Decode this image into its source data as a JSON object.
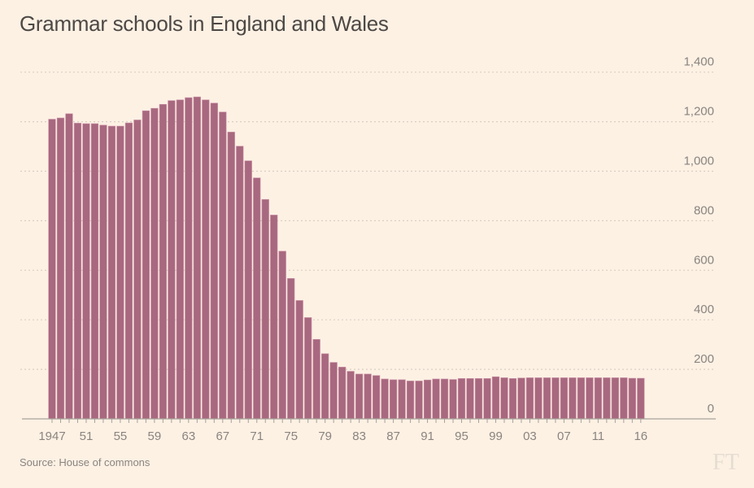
{
  "chart_data": {
    "type": "bar",
    "title": "Grammar schools in England and Wales",
    "source": "Source: House of commons",
    "logo": "FT",
    "xlabel": "",
    "ylabel": "",
    "ylim": [
      0,
      1400
    ],
    "yticks": [
      0,
      200,
      400,
      600,
      800,
      1000,
      1200,
      1400
    ],
    "ytick_labels": [
      "0",
      "200",
      "400",
      "600",
      "800",
      "1,000",
      "1,200",
      "1,400"
    ],
    "grid": true,
    "y_axis_side": "right",
    "xtick_labels": [
      {
        "year": 1947,
        "label": "1947"
      },
      {
        "year": 1951,
        "label": "51"
      },
      {
        "year": 1955,
        "label": "55"
      },
      {
        "year": 1959,
        "label": "59"
      },
      {
        "year": 1963,
        "label": "63"
      },
      {
        "year": 1967,
        "label": "67"
      },
      {
        "year": 1971,
        "label": "71"
      },
      {
        "year": 1975,
        "label": "75"
      },
      {
        "year": 1979,
        "label": "79"
      },
      {
        "year": 1983,
        "label": "83"
      },
      {
        "year": 1987,
        "label": "87"
      },
      {
        "year": 1991,
        "label": "91"
      },
      {
        "year": 1995,
        "label": "95"
      },
      {
        "year": 1999,
        "label": "99"
      },
      {
        "year": 2003,
        "label": "03"
      },
      {
        "year": 2007,
        "label": "07"
      },
      {
        "year": 2011,
        "label": "11"
      },
      {
        "year": 2016,
        "label": "16"
      }
    ],
    "bar_color": "#a8687f",
    "categories": [
      1947,
      1948,
      1949,
      1950,
      1951,
      1952,
      1953,
      1954,
      1955,
      1956,
      1957,
      1958,
      1959,
      1960,
      1961,
      1962,
      1963,
      1964,
      1965,
      1966,
      1967,
      1968,
      1969,
      1970,
      1971,
      1972,
      1973,
      1974,
      1975,
      1976,
      1977,
      1978,
      1979,
      1980,
      1981,
      1982,
      1983,
      1984,
      1985,
      1986,
      1987,
      1988,
      1989,
      1990,
      1991,
      1992,
      1993,
      1994,
      1995,
      1996,
      1997,
      1998,
      1999,
      2000,
      2001,
      2002,
      2003,
      2004,
      2005,
      2006,
      2007,
      2008,
      2009,
      2010,
      2011,
      2012,
      2013,
      2014,
      2015,
      2016
    ],
    "values": [
      1210,
      1215,
      1232,
      1194,
      1192,
      1192,
      1186,
      1182,
      1182,
      1195,
      1207,
      1244,
      1254,
      1270,
      1285,
      1288,
      1297,
      1300,
      1288,
      1275,
      1239,
      1158,
      1101,
      1042,
      973,
      886,
      823,
      677,
      567,
      478,
      409,
      321,
      263,
      228,
      209,
      192,
      181,
      181,
      175,
      161,
      158,
      158,
      153,
      153,
      157,
      161,
      161,
      159,
      163,
      163,
      163,
      163,
      170,
      166,
      163,
      165,
      166,
      166,
      166,
      166,
      166,
      166,
      166,
      166,
      166,
      166,
      166,
      166,
      164,
      164
    ]
  }
}
